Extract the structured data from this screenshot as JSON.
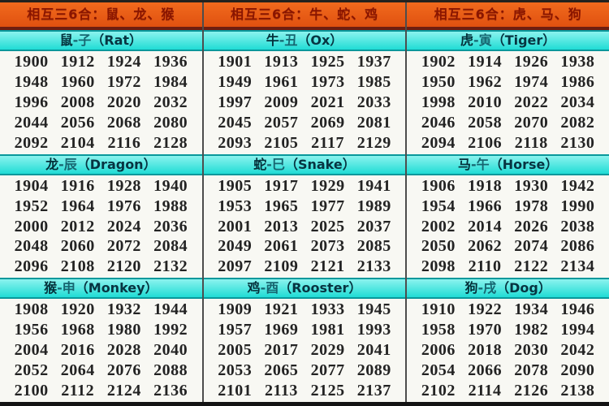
{
  "chart_data": {
    "type": "table",
    "title": "Chinese zodiac six-harmony groups and birth years",
    "columns_per_grid": 4,
    "rows_per_grid": 5,
    "colors": {
      "group_header_bg": "#e95c16",
      "group_header_text": "#8a1500",
      "divider_maroon": "#6e1e10",
      "zodiac_header_bg": "#2ae0da",
      "zodiac_header_border": "#0a989b",
      "zodiac_header_text": "#04303a",
      "grid_bg": "#f8f8f3",
      "year_text": "#232323",
      "column_divider": "#4d4d4d"
    },
    "groups": [
      {
        "header": "相互三6合：鼠、龙、猴",
        "sections": [
          {
            "animal": "鼠",
            "branch": "-子",
            "name_en": "（Rat）",
            "years": [
              1900,
              1912,
              1924,
              1936,
              1948,
              1960,
              1972,
              1984,
              1996,
              2008,
              2020,
              2032,
              2044,
              2056,
              2068,
              2080,
              2092,
              2104,
              2116,
              2128
            ]
          },
          {
            "animal": "龙",
            "branch": "-辰",
            "name_en": "（Dragon）",
            "years": [
              1904,
              1916,
              1928,
              1940,
              1952,
              1964,
              1976,
              1988,
              2000,
              2012,
              2024,
              2036,
              2048,
              2060,
              2072,
              2084,
              2096,
              2108,
              2120,
              2132
            ]
          },
          {
            "animal": "猴",
            "branch": "-申",
            "name_en": "（Monkey）",
            "years": [
              1908,
              1920,
              1932,
              1944,
              1956,
              1968,
              1980,
              1992,
              2004,
              2016,
              2028,
              2040,
              2052,
              2064,
              2076,
              2088,
              2100,
              2112,
              2124,
              2136
            ]
          }
        ]
      },
      {
        "header": "相互三6合：牛、蛇、鸡",
        "sections": [
          {
            "animal": "牛",
            "branch": "-丑",
            "name_en": "（Ox）",
            "years": [
              1901,
              1913,
              1925,
              1937,
              1949,
              1961,
              1973,
              1985,
              1997,
              2009,
              2021,
              2033,
              2045,
              2057,
              2069,
              2081,
              2093,
              2105,
              2117,
              2129
            ]
          },
          {
            "animal": "蛇",
            "branch": "-巳",
            "name_en": "（Snake）",
            "years": [
              1905,
              1917,
              1929,
              1941,
              1953,
              1965,
              1977,
              1989,
              2001,
              2013,
              2025,
              2037,
              2049,
              2061,
              2073,
              2085,
              2097,
              2109,
              2121,
              2133
            ]
          },
          {
            "animal": "鸡",
            "branch": "-酉",
            "name_en": "（Rooster）",
            "years": [
              1909,
              1921,
              1933,
              1945,
              1957,
              1969,
              1981,
              1993,
              2005,
              2017,
              2029,
              2041,
              2053,
              2065,
              2077,
              2089,
              2101,
              2113,
              2125,
              2137
            ]
          }
        ]
      },
      {
        "header": "相互三6合：虎、马、狗",
        "sections": [
          {
            "animal": "虎",
            "branch": "-寅",
            "name_en": "（Tiger）",
            "years": [
              1902,
              1914,
              1926,
              1938,
              1950,
              1962,
              1974,
              1986,
              1998,
              2010,
              2022,
              2034,
              2046,
              2058,
              2070,
              2082,
              2094,
              2106,
              2118,
              2130
            ]
          },
          {
            "animal": "马",
            "branch": "-午",
            "name_en": "（Horse）",
            "years": [
              1906,
              1918,
              1930,
              1942,
              1954,
              1966,
              1978,
              1990,
              2002,
              2014,
              2026,
              2038,
              2050,
              2062,
              2074,
              2086,
              2098,
              2110,
              2122,
              2134
            ]
          },
          {
            "animal": "狗",
            "branch": "-戌",
            "name_en": "（Dog）",
            "years": [
              1910,
              1922,
              1934,
              1946,
              1958,
              1970,
              1982,
              1994,
              2006,
              2018,
              2030,
              2042,
              2054,
              2066,
              2078,
              2090,
              2102,
              2114,
              2126,
              2138
            ]
          }
        ]
      }
    ]
  }
}
